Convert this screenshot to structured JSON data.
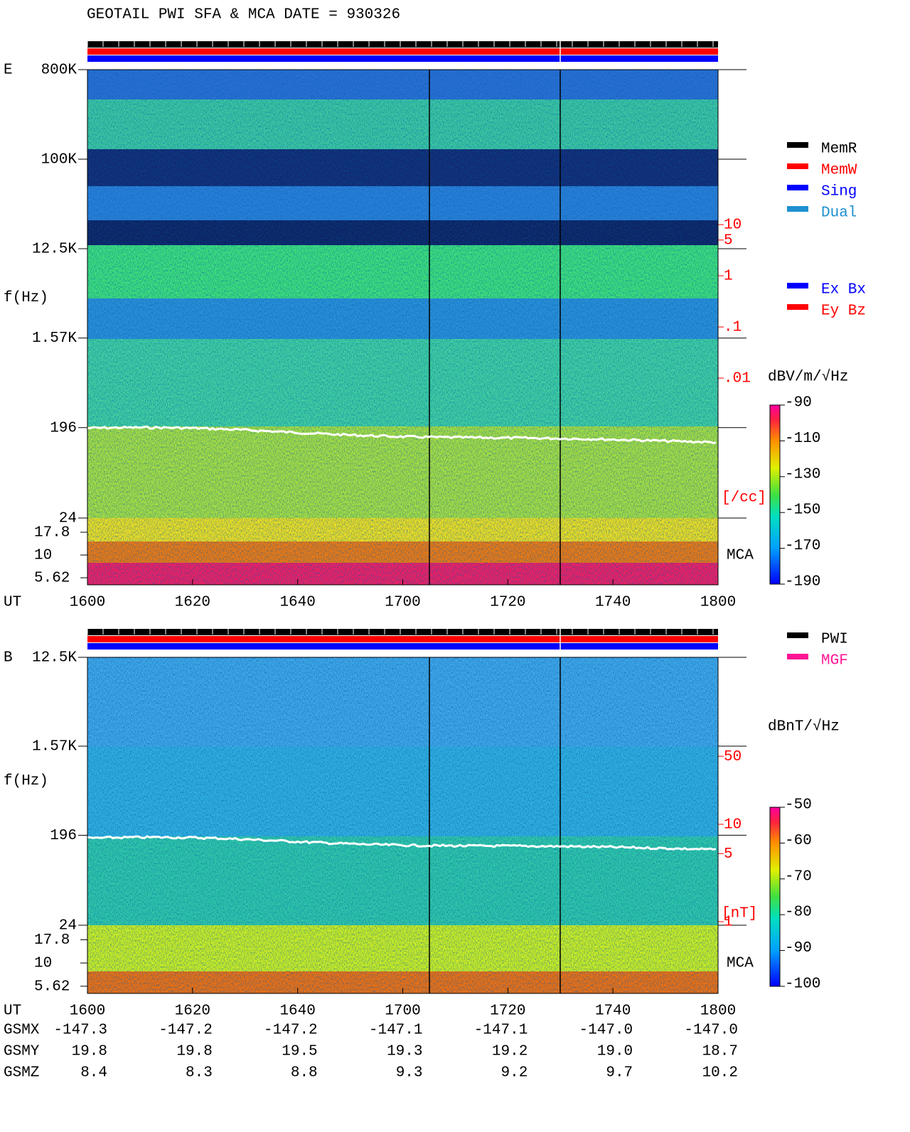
{
  "title": "GEOTAIL  PWI SFA & MCA   DATE = 930326",
  "chart_data": [
    {
      "type": "spectrogram",
      "panel_label": "E",
      "y_label": "f(Hz)",
      "x_label": "UT",
      "categories": [
        "1600",
        "1620",
        "1640",
        "1700",
        "1720",
        "1740",
        "1800"
      ],
      "log_y": true,
      "ylim": [
        24,
        800000
      ],
      "yticks": [
        {
          "value": 800000,
          "label": "800K"
        },
        {
          "value": 100000,
          "label": "100K"
        },
        {
          "value": 12500,
          "label": "12.5K"
        },
        {
          "value": 1570,
          "label": "1.57K"
        },
        196,
        24
      ],
      "mca_ylim": [
        4.7,
        25.5
      ],
      "mca_yticks": [
        17.8,
        10,
        5.62
      ],
      "mca_label": "MCA",
      "y2lim": [
        9.1e-07,
        10700
      ],
      "y2ticks": [
        10,
        5,
        1,
        {
          "value": 0.1,
          "label": ".1"
        },
        {
          "value": 0.01,
          "label": ".01"
        }
      ],
      "y2_label": "[/cc]",
      "y2_color": "#ff0000",
      "colorbar": {
        "label": "dBV/m/√Hz",
        "lim": [
          -190,
          -90
        ],
        "ticks": [
          -90,
          -110,
          -130,
          -150,
          -170,
          -190
        ]
      },
      "legend": [
        {
          "name": "MemR",
          "color": "#000000"
        },
        {
          "name": "MemW",
          "color": "#ff0000"
        },
        {
          "name": "Sing",
          "color": "#0000ff"
        },
        {
          "name": "Dual",
          "color": "#1e90d0"
        }
      ],
      "legend2": [
        {
          "name": "Ex Bx",
          "color": "#0000ff"
        },
        {
          "name": "Ey Bz",
          "color": "#ff0000"
        }
      ]
    },
    {
      "type": "spectrogram",
      "panel_label": "B",
      "y_label": "f(Hz)",
      "x_label": "UT",
      "categories": [
        "1600",
        "1620",
        "1640",
        "1700",
        "1720",
        "1740",
        "1800"
      ],
      "log_y": true,
      "ylim": [
        24,
        12500
      ],
      "yticks": [
        {
          "value": 12500,
          "label": "12.5K"
        },
        {
          "value": 1570,
          "label": "1.57K"
        },
        196,
        24
      ],
      "mca_ylim": [
        4.7,
        25.5
      ],
      "mca_yticks": [
        17.8,
        10,
        5.62
      ],
      "mca_label": "MCA",
      "y2lim": [
        0.183,
        519
      ],
      "y2ticks": [
        50,
        10,
        5,
        1
      ],
      "y2_label": "[nT]",
      "y2_color": "#ff0000",
      "colorbar": {
        "label": "dBnT/√Hz",
        "lim": [
          -100,
          -50
        ],
        "ticks": [
          -50,
          -60,
          -70,
          -80,
          -90,
          -100
        ]
      },
      "legend": [
        {
          "name": "PWI",
          "color": "#000000"
        },
        {
          "name": "MGF",
          "color": "#ff1493"
        }
      ]
    }
  ],
  "orbit": {
    "labels": [
      "GSMX",
      "GSMY",
      "GSMZ"
    ],
    "rows": [
      [
        "-147.3",
        "-147.2",
        "-147.2",
        "-147.1",
        "-147.1",
        "-147.0",
        "-147.0"
      ],
      [
        "19.8",
        "19.8",
        "19.5",
        "19.3",
        "19.2",
        "19.0",
        "18.7"
      ],
      [
        "8.4",
        "8.3",
        "8.8",
        "9.3",
        "9.2",
        "9.7",
        "10.2"
      ]
    ]
  }
}
